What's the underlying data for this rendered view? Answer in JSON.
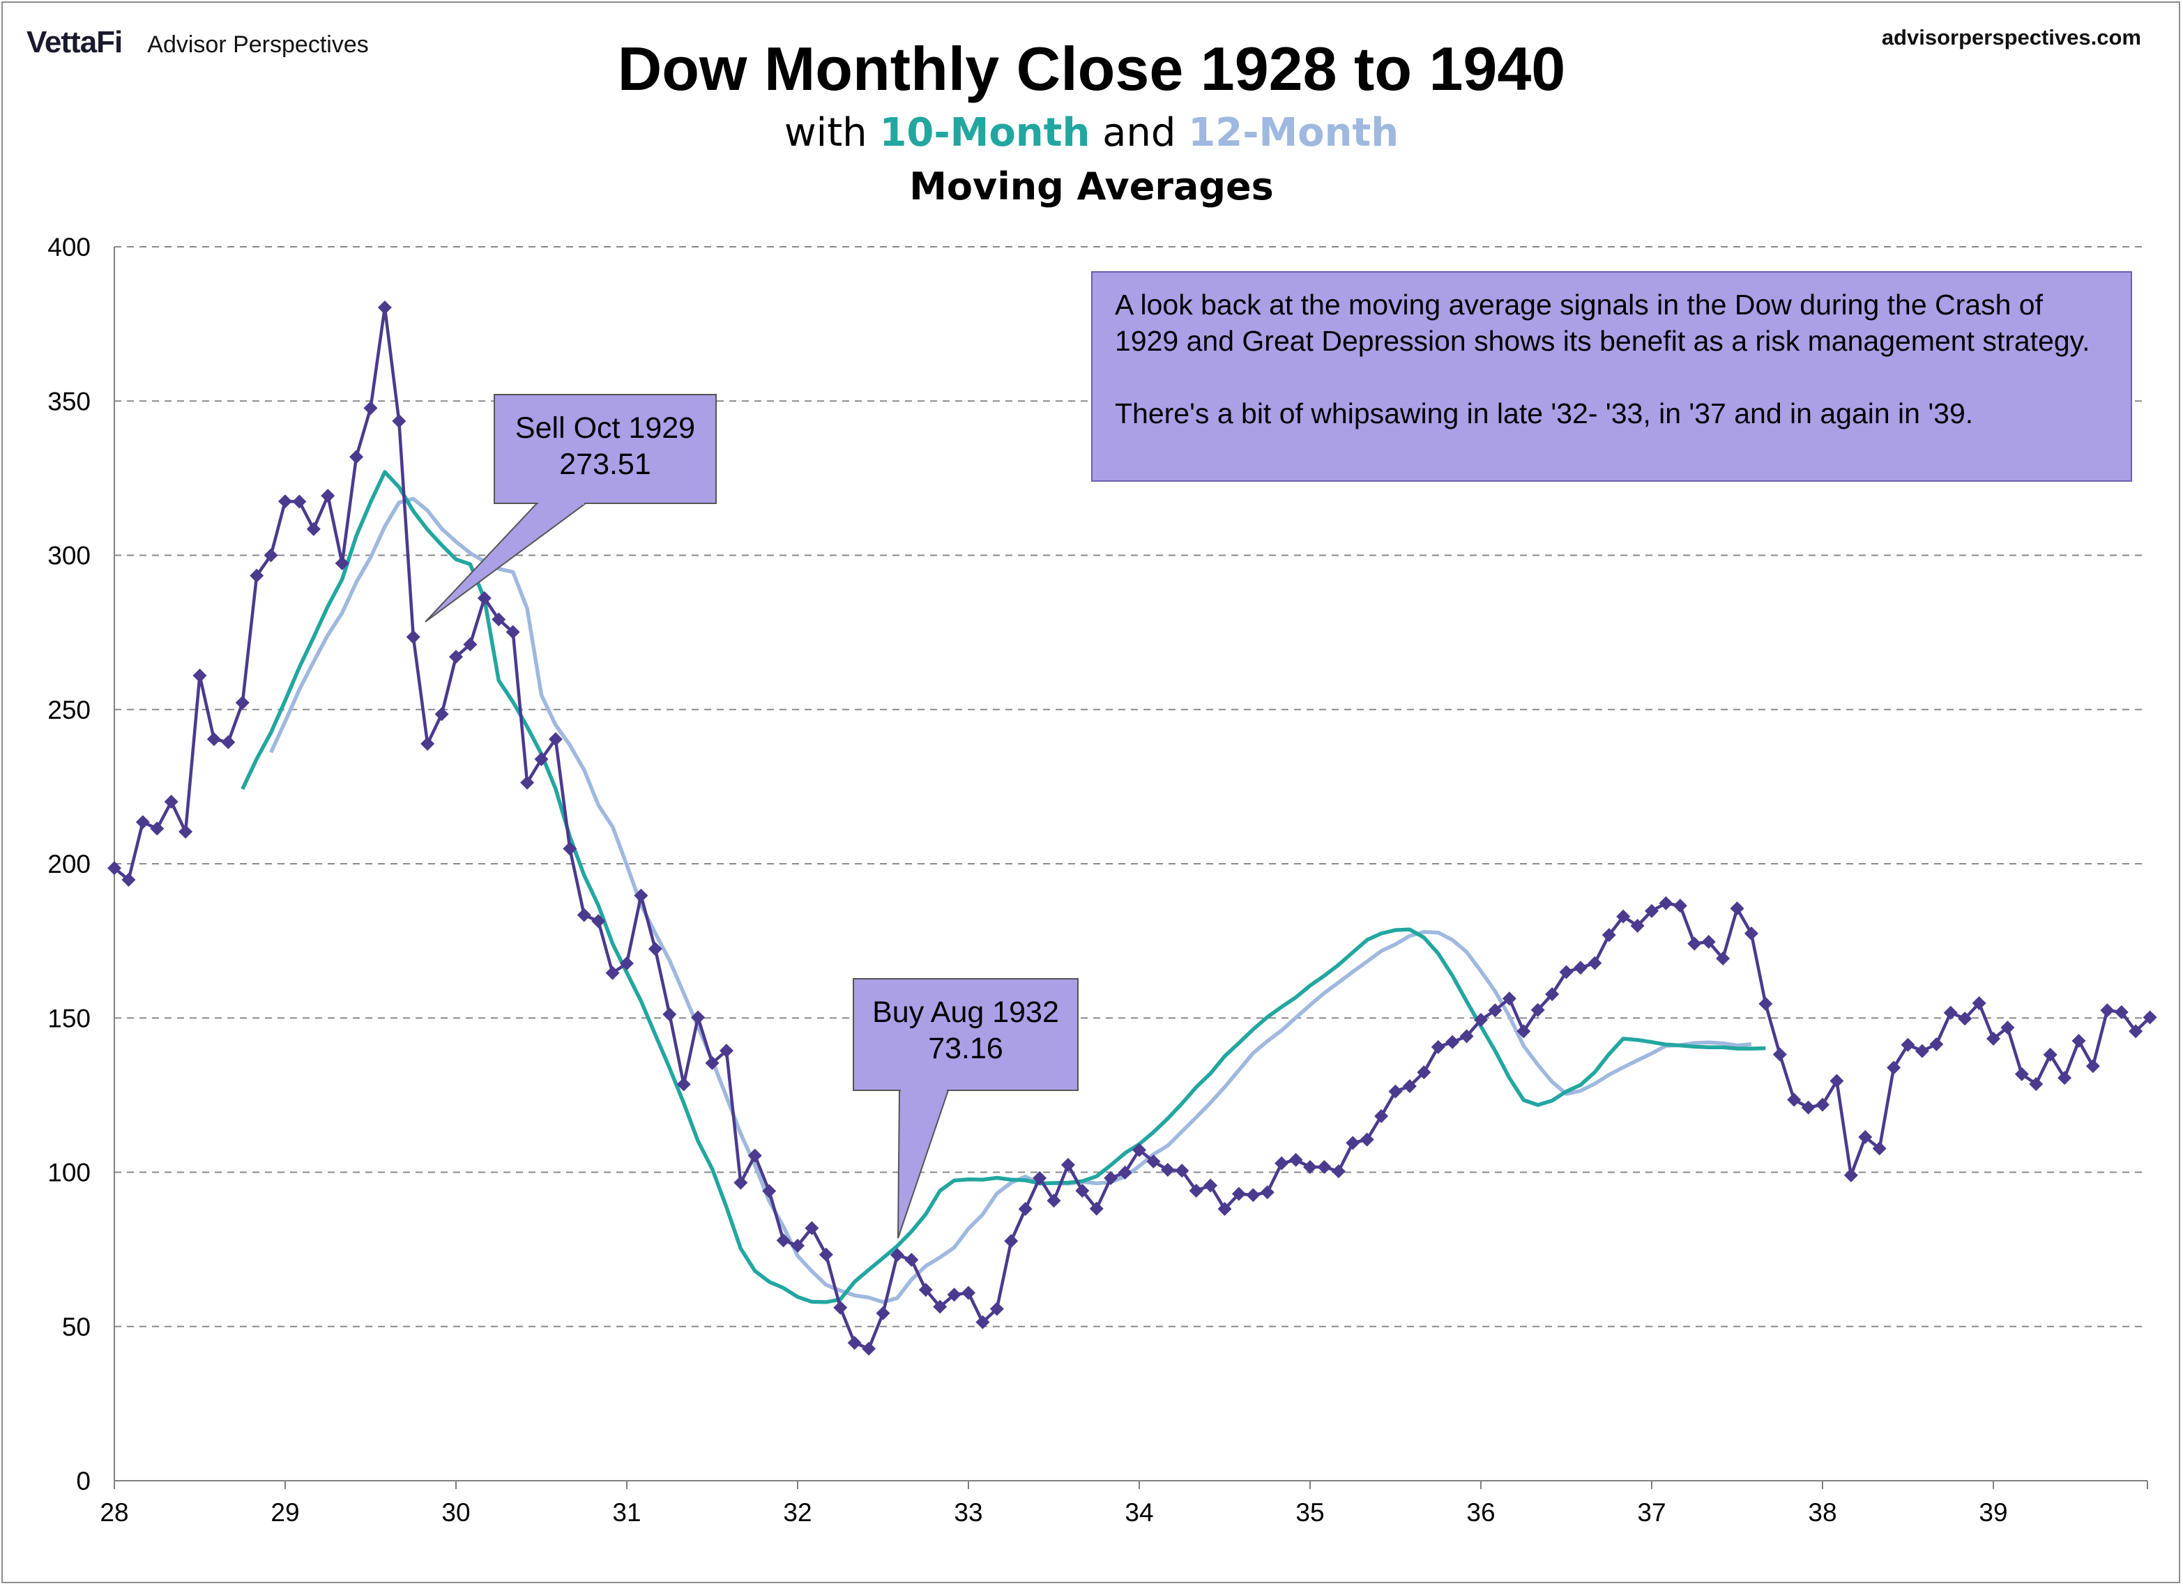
{
  "brand": {
    "logo": "VettaFi",
    "name": "Advisor Perspectives",
    "url": "advisorperspectives.com"
  },
  "header": {
    "title": "Dow Monthly Close 1928 to 1940",
    "subtitle_prefix": "with ",
    "subtitle_ma10": "10-Month",
    "subtitle_mid": " and ",
    "subtitle_ma12": "12-Month",
    "subtitle_line2": "Moving Averages"
  },
  "note": {
    "line1": "A look back at the moving average signals in the Dow during the Crash of 1929 and Great Depression shows its  benefit as a risk management strategy.",
    "line2": "There's a bit of whipsawing in late '32- '33, in '37 and in again in '39."
  },
  "chart_data": {
    "type": "line",
    "title": "Dow Monthly Close 1928 to 1940",
    "xlabel": "",
    "ylabel": "",
    "x_ticks": [
      "28",
      "29",
      "30",
      "31",
      "32",
      "33",
      "34",
      "35",
      "36",
      "37",
      "38",
      "39"
    ],
    "y_ticks": [
      "0",
      "50",
      "100",
      "150",
      "200",
      "250",
      "300",
      "350",
      "400"
    ],
    "ylim": [
      0,
      400
    ],
    "grid": true,
    "colors": {
      "dow": "#4b3a8e",
      "ma10": "#22a6a0",
      "ma12": "#9fb8df",
      "callout": "#ab9fe6"
    },
    "x_start_year": 1928,
    "series": [
      {
        "name": "",
        "marker": "diamond",
        "values": [
          198.6,
          194.8,
          213.5,
          211.4,
          220.1,
          210.4,
          261.0,
          240.4,
          239.4,
          252.2,
          293.4,
          300.0,
          317.5,
          317.4,
          308.5,
          319.3,
          297.4,
          331.9,
          347.7,
          380.3,
          343.5,
          273.5,
          238.9,
          248.5,
          267.1,
          271.1,
          286.1,
          279.2,
          275.1,
          226.3,
          233.9,
          240.4,
          204.9,
          183.4,
          181.4,
          164.6,
          167.7,
          189.7,
          172.4,
          151.2,
          128.5,
          150.2,
          135.4,
          139.4,
          96.6,
          105.4,
          93.9,
          77.9,
          76.2,
          81.9,
          73.3,
          56.1,
          44.7,
          42.8,
          54.3,
          73.2,
          71.6,
          61.9,
          56.4,
          60.3,
          60.9,
          51.4,
          55.7,
          77.7,
          88.1,
          98.1,
          90.8,
          102.4,
          94.0,
          88.2,
          98.1,
          99.9,
          107.2,
          103.5,
          100.8,
          100.5,
          94.0,
          95.7,
          88.1,
          93.0,
          92.6,
          93.5,
          102.9,
          104.0,
          101.7,
          101.7,
          100.3,
          109.5,
          110.6,
          118.2,
          126.2,
          127.9,
          132.4,
          140.6,
          142.2,
          144.1,
          149.4,
          152.5,
          156.3,
          145.7,
          152.6,
          157.7,
          164.9,
          166.3,
          167.8,
          176.9,
          182.9,
          179.9,
          184.7,
          187.2,
          186.4,
          174.1,
          174.7,
          169.3,
          185.5,
          177.4,
          154.6,
          138.2,
          123.5,
          121.0,
          121.9,
          129.6,
          99.0,
          111.4,
          107.7,
          133.9,
          141.3,
          139.3,
          141.5,
          151.7,
          149.8,
          154.8,
          143.3,
          146.9,
          131.8,
          128.6,
          138.1,
          130.6,
          142.6,
          134.4,
          152.5,
          151.9,
          145.7,
          150.2
        ]
      },
      {
        "name": "10-Month",
        "start_index": 9,
        "values": [
          224.2,
          234.0,
          242.5,
          252.9,
          263.7,
          273.4,
          283.5,
          292.2,
          306.3,
          317.2,
          327.0,
          322.1,
          314.3,
          308.3,
          303.3,
          298.7,
          297.1,
          285.9,
          259.4,
          252.5,
          244.4,
          235.6,
          224.3,
          208.8,
          196.3,
          186.5,
          174.1,
          164.7,
          155.5,
          144.6,
          133.8,
          122.4,
          110.1,
          101.1,
          88.7,
          75.3,
          68.0,
          64.5,
          62.5,
          59.6,
          58.0,
          57.9,
          58.8,
          64.5,
          68.4,
          72.2,
          76.1,
          80.8,
          86.4,
          94.0,
          97.3,
          97.7,
          97.6,
          98.2,
          97.6,
          97.4,
          96.4,
          96.5,
          96.6,
          97.1,
          98.7,
          102.3,
          106.2,
          109.1,
          113.0,
          117.4,
          122.3,
          127.6,
          132.0,
          137.6,
          141.9,
          146.3,
          150.3,
          153.6,
          156.7,
          160.5,
          163.7,
          167.2,
          171.3,
          175.3,
          177.4,
          178.5,
          178.7,
          176.1,
          170.9,
          163.7,
          155.4,
          147.3,
          139.4,
          130.6,
          123.4,
          121.8,
          123.2,
          126.2,
          128.3,
          132.4,
          138.3,
          143.3,
          142.9,
          142.2,
          141.4,
          141.1,
          140.7,
          140.5,
          140.5,
          140.1,
          140.1,
          140.2
        ]
      },
      {
        "name": "12-Month",
        "start_index": 11,
        "values": [
          236.1,
          246.1,
          256.5,
          265.5,
          274.2,
          281.3,
          291.3,
          299.3,
          309.3,
          317.1,
          318.3,
          314.5,
          308.6,
          304.4,
          300.7,
          298.0,
          295.6,
          294.6,
          282.7,
          254.7,
          245.0,
          238.5,
          230.4,
          219.0,
          212.0,
          199.6,
          186.7,
          177.5,
          168.7,
          158.0,
          147.1,
          136.3,
          124.5,
          112.5,
          102.3,
          90.7,
          82.4,
          72.9,
          67.9,
          63.5,
          61.6,
          60.1,
          59.4,
          57.9,
          59.2,
          65.2,
          69.6,
          72.4,
          75.6,
          81.7,
          86.3,
          93.1,
          96.6,
          98.6,
          96.3,
          96.5,
          96.3,
          96.9,
          96.4,
          96.8,
          98.6,
          102.0,
          105.8,
          108.6,
          113.2,
          117.8,
          122.5,
          127.6,
          133.1,
          138.6,
          142.5,
          146.0,
          150.1,
          154.2,
          158.1,
          161.5,
          165.0,
          168.3,
          171.7,
          173.9,
          176.6,
          177.9,
          177.7,
          175.3,
          171.4,
          165.2,
          158.7,
          150.5,
          141.0,
          134.8,
          129.3,
          125.4,
          126.4,
          128.7,
          131.6,
          134.0,
          136.3,
          138.5,
          141.0,
          141.2,
          141.9,
          142.1,
          141.8,
          141.1,
          141.5
        ]
      }
    ],
    "annotations": [
      {
        "line1": "Sell Oct 1929",
        "line2": "273.51",
        "point_index": 21,
        "value": 273.51
      },
      {
        "line1": "Buy Aug 1932",
        "line2": "73.16",
        "point_index": 55,
        "value": 73.16
      }
    ]
  }
}
